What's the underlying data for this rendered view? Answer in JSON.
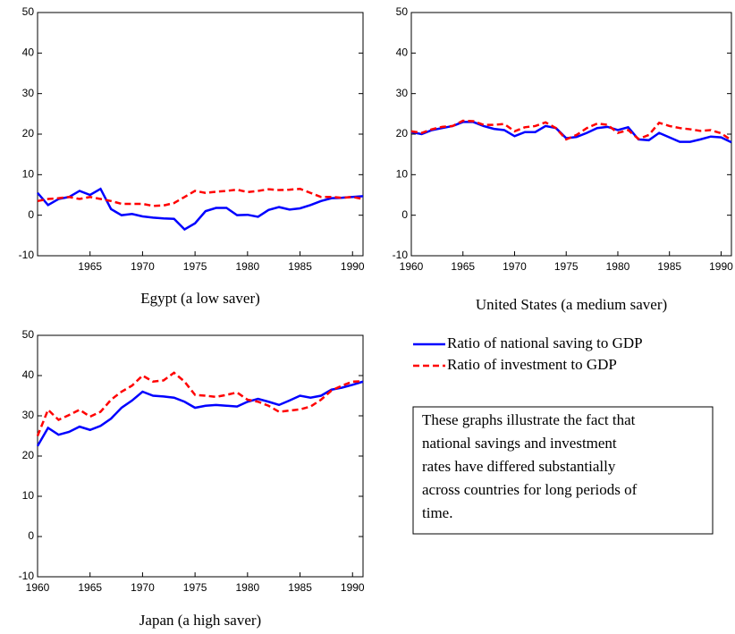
{
  "chart_data": [
    {
      "type": "line",
      "title": "Egypt (a low saver)",
      "x": [
        1960,
        1961,
        1962,
        1963,
        1964,
        1965,
        1966,
        1967,
        1968,
        1969,
        1970,
        1971,
        1972,
        1973,
        1974,
        1975,
        1976,
        1977,
        1978,
        1979,
        1980,
        1981,
        1982,
        1983,
        1984,
        1985,
        1986,
        1987,
        1988,
        1989,
        1990,
        1991
      ],
      "series": [
        {
          "name": "Ratio of national saving to GDP",
          "color": "#0000ff",
          "dashed": false,
          "values": [
            5.5,
            2.5,
            4,
            4.5,
            6,
            5,
            6.5,
            1.5,
            0,
            0.3,
            -0.3,
            -0.6,
            -0.8,
            -0.9,
            -3.5,
            -2,
            1,
            1.8,
            1.8,
            0,
            0.1,
            -0.4,
            1.3,
            2,
            1.4,
            1.7,
            2.5,
            3.5,
            4.2,
            4.3,
            4.5,
            4.7
          ]
        },
        {
          "name": "Ratio of investment to GDP",
          "color": "#ff0000",
          "dashed": true,
          "values": [
            3.5,
            4,
            4.2,
            4.5,
            4,
            4.5,
            4,
            3.5,
            2.8,
            2.8,
            2.8,
            2.3,
            2.4,
            3,
            4.5,
            6,
            5.5,
            5.8,
            6,
            6.3,
            5.7,
            6,
            6.4,
            6.2,
            6.3,
            6.5,
            5.5,
            4.5,
            4.5,
            4.3,
            4.5,
            4
          ]
        }
      ],
      "xlim": [
        1960,
        1991
      ],
      "xticks": [
        1965,
        1970,
        1975,
        1980,
        1985,
        1990
      ],
      "ylim": [
        -10,
        50
      ],
      "yticks": [
        -10,
        0,
        10,
        20,
        30,
        40,
        50
      ]
    },
    {
      "type": "line",
      "title": "United States (a medium saver)",
      "x": [
        1960,
        1961,
        1962,
        1963,
        1964,
        1965,
        1966,
        1967,
        1968,
        1969,
        1970,
        1971,
        1972,
        1973,
        1974,
        1975,
        1976,
        1977,
        1978,
        1979,
        1980,
        1981,
        1982,
        1983,
        1984,
        1985,
        1986,
        1987,
        1988,
        1989,
        1990,
        1991
      ],
      "series": [
        {
          "name": "Ratio of national saving to GDP",
          "color": "#0000ff",
          "dashed": false,
          "values": [
            20.5,
            20,
            21,
            21.5,
            22,
            23,
            23,
            22,
            21.3,
            21,
            19.5,
            20.5,
            20.5,
            22,
            21.5,
            19,
            19.3,
            20.3,
            21.5,
            21.8,
            21,
            21.7,
            18.7,
            18.5,
            20.3,
            19.2,
            18.1,
            18.1,
            18.7,
            19.4,
            19.2,
            18
          ]
        },
        {
          "name": "Ratio of investment to GDP",
          "color": "#ff0000",
          "dashed": true,
          "values": [
            20.7,
            20.3,
            21.2,
            21.8,
            22,
            23.3,
            23.2,
            22.3,
            22.3,
            22.5,
            20.7,
            21.7,
            22,
            22.9,
            21.5,
            18.7,
            19.8,
            21.5,
            22.6,
            22.3,
            20.3,
            21,
            18.8,
            19.8,
            22.8,
            22,
            21.5,
            21.2,
            20.8,
            21,
            20.2,
            18.5
          ]
        }
      ],
      "xlim": [
        1960,
        1991
      ],
      "xticks": [
        1960,
        1965,
        1970,
        1975,
        1980,
        1985,
        1990
      ],
      "ylim": [
        -10,
        50
      ],
      "yticks": [
        -10,
        0,
        10,
        20,
        30,
        40,
        50
      ]
    },
    {
      "type": "line",
      "title": "Japan (a high saver)",
      "x": [
        1960,
        1961,
        1962,
        1963,
        1964,
        1965,
        1966,
        1967,
        1968,
        1969,
        1970,
        1971,
        1972,
        1973,
        1974,
        1975,
        1976,
        1977,
        1978,
        1979,
        1980,
        1981,
        1982,
        1983,
        1984,
        1985,
        1986,
        1987,
        1988,
        1989,
        1990,
        1991
      ],
      "series": [
        {
          "name": "Ratio of national saving to GDP",
          "color": "#0000ff",
          "dashed": false,
          "values": [
            22.5,
            27,
            25.3,
            26,
            27.3,
            26.5,
            27.5,
            29.3,
            32,
            33.8,
            36,
            35,
            34.8,
            34.5,
            33.5,
            32,
            32.5,
            32.7,
            32.5,
            32.3,
            33.5,
            34.2,
            33.5,
            32.7,
            33.8,
            35,
            34.5,
            35,
            36.5,
            37,
            37.7,
            38.5
          ]
        },
        {
          "name": "Ratio of investment to GDP",
          "color": "#ff0000",
          "dashed": true,
          "values": [
            25,
            31.5,
            29,
            30.2,
            31.5,
            29.8,
            31,
            34,
            36,
            37.5,
            40,
            38.5,
            38.8,
            40.7,
            38.5,
            35.2,
            35,
            34.7,
            35.2,
            35.8,
            34,
            33.5,
            32.5,
            31,
            31.3,
            31.6,
            32.3,
            34,
            36.3,
            37.5,
            38.5,
            38.6
          ]
        }
      ],
      "xlim": [
        1960,
        1991
      ],
      "xticks": [
        1960,
        1965,
        1970,
        1975,
        1980,
        1985,
        1990
      ],
      "ylim": [
        -10,
        50
      ],
      "yticks": [
        -10,
        0,
        10,
        20,
        30,
        40,
        50
      ]
    }
  ],
  "note_lines": [
    "These graphs illustrate the fact that",
    "national savings and investment",
    "rates have differed substantially",
    "across countries for long periods of",
    "time."
  ]
}
